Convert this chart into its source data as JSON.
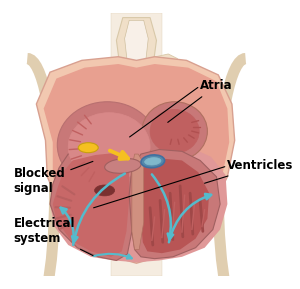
{
  "bg_color": "#ffffff",
  "c_outer": "#f2c8b0",
  "c_myo": "#e8a090",
  "c_endo": "#d08878",
  "c_chamber_wall": "#c87878",
  "c_chamber_inner": "#b85858",
  "c_dark_chamber": "#9a3838",
  "c_septum": "#d09080",
  "c_vessel": "#f0dfc8",
  "c_vessel_inner": "#f8f0e8",
  "c_bone": "#f5ece0",
  "c_elec": "#55bbcc",
  "c_signal": "#f5c020",
  "c_ridge": "#c87878",
  "c_left_vent": "#c06060",
  "labels": {
    "atria": "Atria",
    "ventricles": "Ventricles",
    "blocked_signal": "Blocked\nsignal",
    "electrical_system": "Electrical\nsystem"
  },
  "figsize": [
    3.0,
    2.89
  ],
  "dpi": 100
}
